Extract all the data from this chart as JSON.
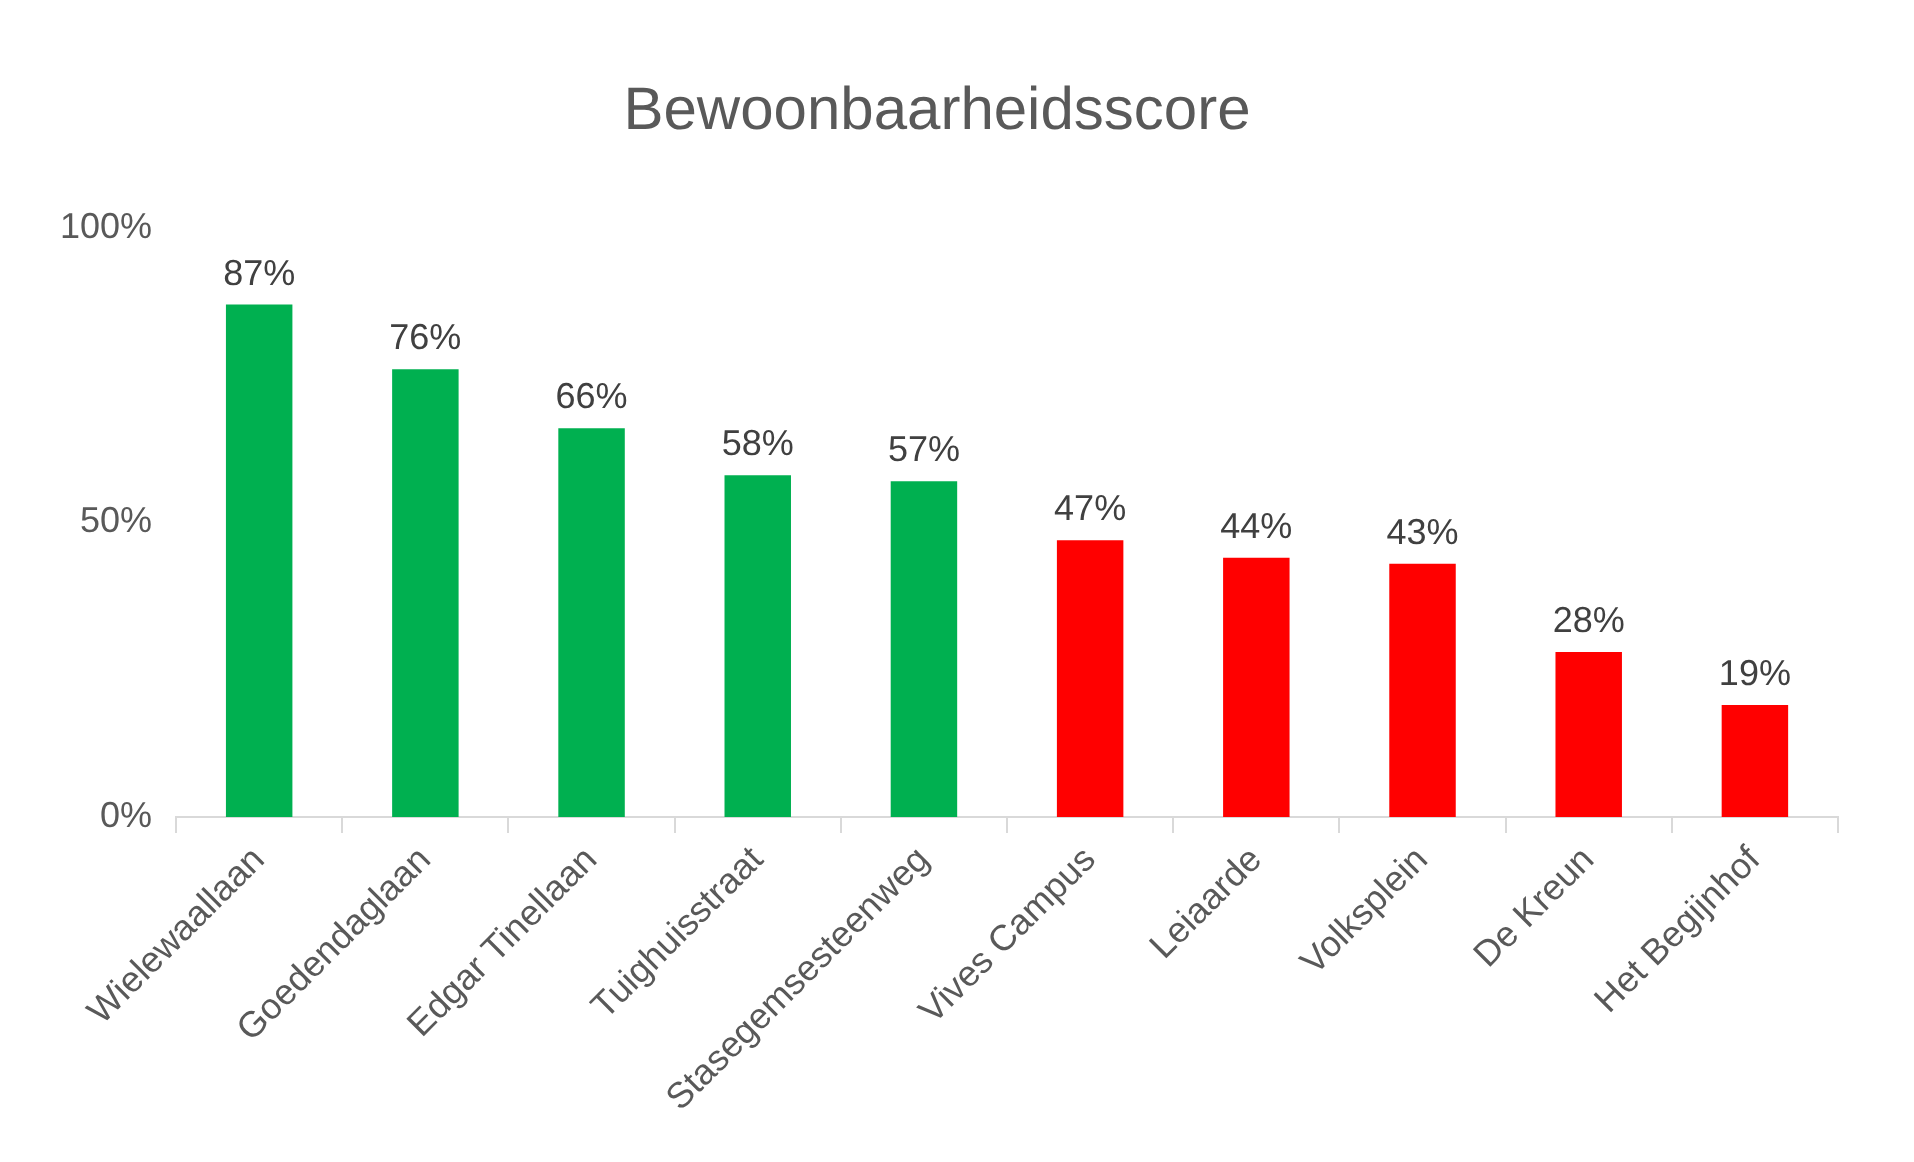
{
  "chart_data": {
    "type": "bar",
    "title": "Bewoonbaarheidsscore",
    "categories": [
      "Wielewaallaan",
      "Goedendaglaan",
      "Edgar Tinellaan",
      "Tuighuisstraat",
      "Stasegemsesteenweg",
      "Vives Campus",
      "Leiaarde",
      "Volksplein",
      "De Kreun",
      "Het Begijnhof"
    ],
    "values": [
      87,
      76,
      66,
      58,
      57,
      47,
      44,
      43,
      28,
      19
    ],
    "colors": [
      "#00b050",
      "#00b050",
      "#00b050",
      "#00b050",
      "#00b050",
      "#ff0000",
      "#ff0000",
      "#ff0000",
      "#ff0000",
      "#ff0000"
    ],
    "value_labels": [
      "87%",
      "76%",
      "66%",
      "58%",
      "57%",
      "47%",
      "44%",
      "43%",
      "28%",
      "19%"
    ],
    "ylim": [
      0,
      100
    ],
    "yticks": [
      {
        "value": 0,
        "label": "0%"
      },
      {
        "value": 50,
        "label": "50%"
      },
      {
        "value": 100,
        "label": "100%"
      }
    ],
    "grid": false,
    "legend": false
  }
}
